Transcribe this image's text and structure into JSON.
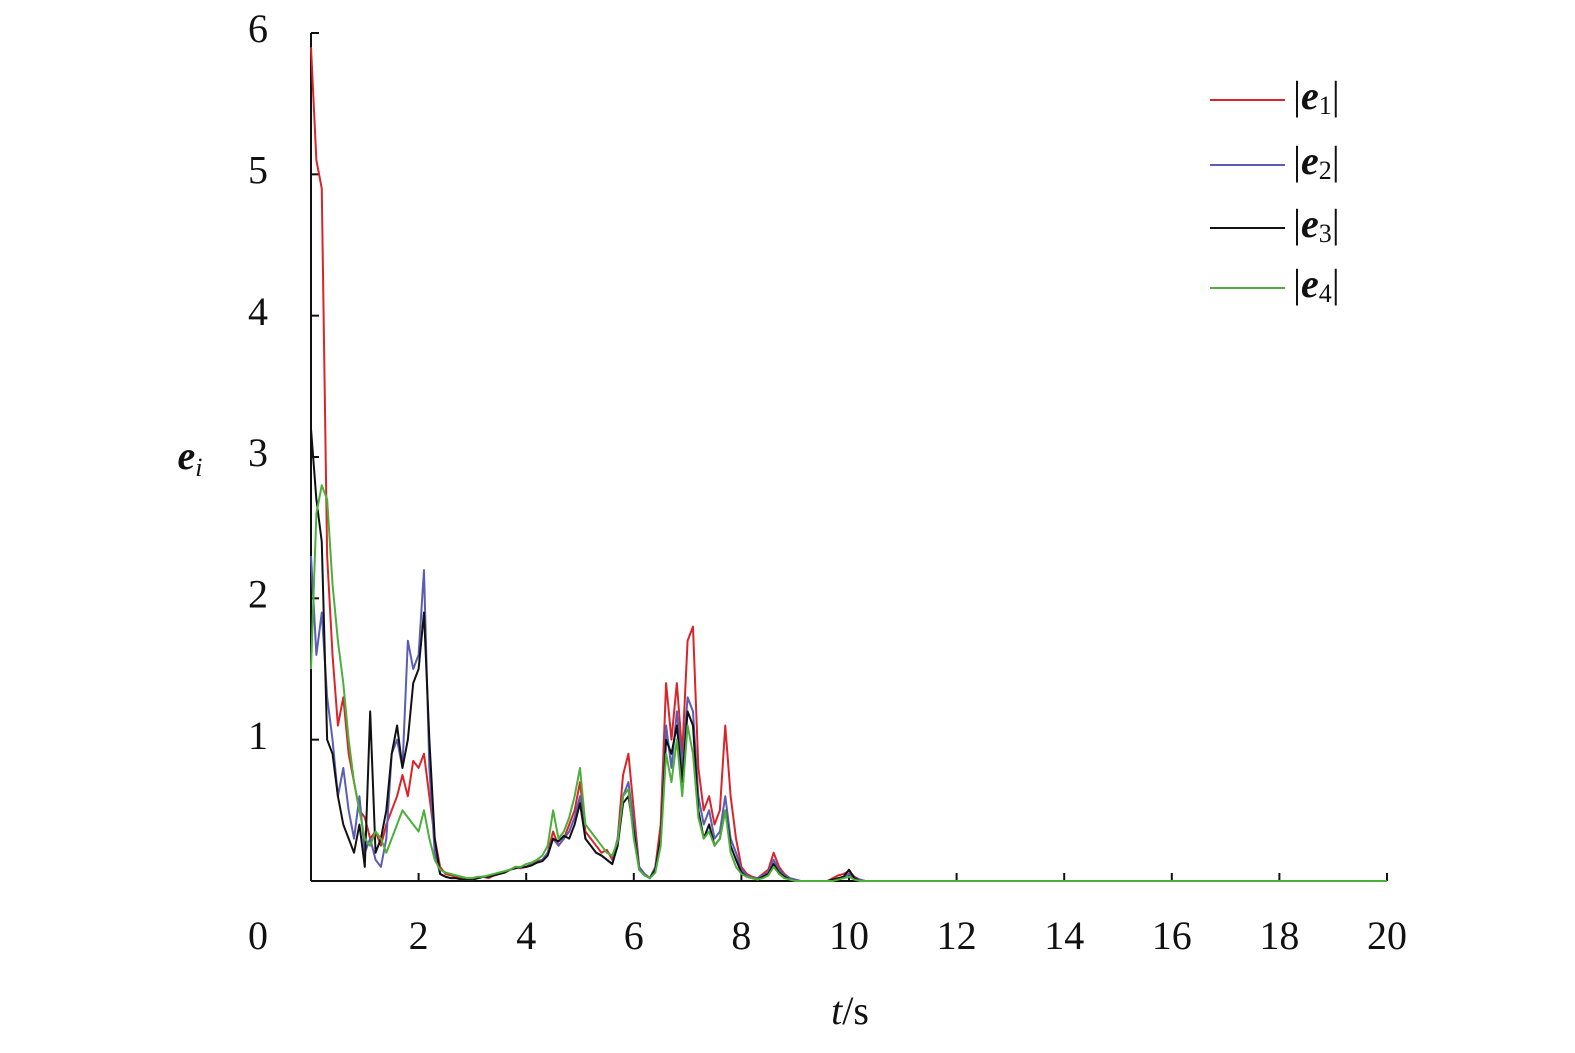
{
  "chart_data": {
    "type": "line",
    "xlabel": [
      "t",
      "/s"
    ],
    "ylabel": [
      "e",
      "i"
    ],
    "xlim": [
      0,
      20
    ],
    "ylim": [
      0,
      6
    ],
    "xticks": [
      0,
      2,
      4,
      6,
      8,
      10,
      12,
      14,
      16,
      18,
      20
    ],
    "yticks": [
      1,
      2,
      3,
      4,
      5,
      6
    ],
    "legend": "upper right",
    "x": [
      0,
      0.1,
      0.2,
      0.3,
      0.4,
      0.5,
      0.6,
      0.7,
      0.8,
      0.9,
      1,
      1.1,
      1.2,
      1.3,
      1.4,
      1.5,
      1.6,
      1.7,
      1.8,
      1.9,
      2,
      2.1,
      2.2,
      2.3,
      2.4,
      2.5,
      2.6,
      2.7,
      2.8,
      2.9,
      3,
      3.1,
      3.2,
      3.3,
      3.4,
      3.5,
      3.6,
      3.7,
      3.8,
      3.9,
      4,
      4.1,
      4.2,
      4.3,
      4.4,
      4.5,
      4.6,
      4.7,
      4.8,
      4.9,
      5,
      5.1,
      5.2,
      5.3,
      5.4,
      5.5,
      5.6,
      5.7,
      5.8,
      5.9,
      6,
      6.1,
      6.2,
      6.3,
      6.4,
      6.5,
      6.6,
      6.7,
      6.8,
      6.9,
      7,
      7.1,
      7.2,
      7.3,
      7.4,
      7.5,
      7.6,
      7.7,
      7.8,
      7.9,
      8,
      8.1,
      8.2,
      8.3,
      8.4,
      8.5,
      8.6,
      8.7,
      8.8,
      8.9,
      9,
      9.1,
      9.2,
      9.3,
      9.4,
      9.5,
      9.6,
      9.7,
      9.8,
      9.9,
      10,
      10.1,
      10.2,
      10.3,
      10.4,
      10.5,
      20
    ],
    "series": [
      {
        "name": "|e1|",
        "color": "#d9252a",
        "values": [
          5.9,
          5.1,
          4.9,
          2.3,
          1.6,
          1.1,
          1.3,
          0.9,
          0.7,
          0.5,
          0.45,
          0.3,
          0.35,
          0.25,
          0.4,
          0.5,
          0.6,
          0.75,
          0.6,
          0.85,
          0.8,
          0.9,
          0.6,
          0.3,
          0.1,
          0.05,
          0.04,
          0.03,
          0.02,
          0.01,
          0.01,
          0.02,
          0.03,
          0.02,
          0.04,
          0.05,
          0.06,
          0.08,
          0.1,
          0.09,
          0.1,
          0.12,
          0.14,
          0.15,
          0.2,
          0.35,
          0.25,
          0.3,
          0.4,
          0.5,
          0.7,
          0.35,
          0.3,
          0.25,
          0.2,
          0.22,
          0.15,
          0.3,
          0.75,
          0.9,
          0.5,
          0.1,
          0.05,
          0.02,
          0.1,
          0.4,
          1.4,
          1,
          1.4,
          0.9,
          1.7,
          1.8,
          0.8,
          0.5,
          0.6,
          0.4,
          0.5,
          1.1,
          0.6,
          0.3,
          0.1,
          0.05,
          0.03,
          0.02,
          0.05,
          0.08,
          0.2,
          0.1,
          0.05,
          0.02,
          0.01,
          0,
          0,
          0,
          0,
          0,
          0,
          0.02,
          0.04,
          0.05,
          0.07,
          0.03,
          0.01,
          0,
          0,
          0,
          0
        ]
      },
      {
        "name": "|e2|",
        "color": "#5a5db3",
        "values": [
          2.3,
          1.6,
          1.9,
          1.3,
          1,
          0.6,
          0.8,
          0.5,
          0.3,
          0.6,
          0.2,
          0.3,
          0.15,
          0.1,
          0.3,
          0.9,
          1,
          0.8,
          1.7,
          1.5,
          1.6,
          2.2,
          0.8,
          0.2,
          0.05,
          0.03,
          0.02,
          0.02,
          0.01,
          0.01,
          0.01,
          0.02,
          0.03,
          0.03,
          0.04,
          0.05,
          0.06,
          0.08,
          0.09,
          0.1,
          0.1,
          0.12,
          0.13,
          0.15,
          0.2,
          0.3,
          0.25,
          0.3,
          0.35,
          0.45,
          0.6,
          0.3,
          0.25,
          0.2,
          0.18,
          0.15,
          0.12,
          0.3,
          0.6,
          0.7,
          0.4,
          0.1,
          0.05,
          0.02,
          0.1,
          0.3,
          1.1,
          0.8,
          1.2,
          0.8,
          1.3,
          1.2,
          0.6,
          0.4,
          0.5,
          0.3,
          0.35,
          0.6,
          0.3,
          0.2,
          0.08,
          0.04,
          0.02,
          0.02,
          0.04,
          0.06,
          0.15,
          0.08,
          0.04,
          0.02,
          0.01,
          0,
          0,
          0,
          0,
          0,
          0,
          0.01,
          0.02,
          0.03,
          0.05,
          0.02,
          0.01,
          0,
          0,
          0,
          0
        ]
      },
      {
        "name": "|e3|",
        "color": "#111111",
        "values": [
          3.2,
          2.7,
          2.4,
          1,
          0.9,
          0.6,
          0.4,
          0.3,
          0.2,
          0.4,
          0.1,
          1.2,
          0.2,
          0.3,
          0.5,
          0.9,
          1.1,
          0.8,
          1,
          1.4,
          1.5,
          1.9,
          1,
          0.3,
          0.05,
          0.03,
          0.02,
          0.02,
          0.01,
          0.01,
          0.01,
          0.02,
          0.03,
          0.03,
          0.04,
          0.05,
          0.06,
          0.08,
          0.09,
          0.1,
          0.1,
          0.11,
          0.13,
          0.14,
          0.18,
          0.3,
          0.28,
          0.32,
          0.3,
          0.4,
          0.55,
          0.3,
          0.25,
          0.2,
          0.18,
          0.15,
          0.12,
          0.25,
          0.55,
          0.6,
          0.35,
          0.08,
          0.04,
          0.02,
          0.08,
          0.3,
          1,
          0.9,
          1.1,
          0.7,
          1.2,
          1.1,
          0.5,
          0.3,
          0.4,
          0.25,
          0.3,
          0.5,
          0.25,
          0.15,
          0.06,
          0.03,
          0.02,
          0.01,
          0.03,
          0.05,
          0.12,
          0.06,
          0.03,
          0.01,
          0,
          0,
          0,
          0,
          0,
          0,
          0,
          0.01,
          0.02,
          0.03,
          0.08,
          0.02,
          0,
          0,
          0,
          0,
          0
        ]
      },
      {
        "name": "|e4|",
        "color": "#4caf3a",
        "values": [
          1.5,
          2.6,
          2.8,
          2.7,
          2.1,
          1.7,
          1.4,
          1,
          0.7,
          0.5,
          0.3,
          0.25,
          0.35,
          0.3,
          0.2,
          0.3,
          0.4,
          0.5,
          0.45,
          0.4,
          0.35,
          0.5,
          0.3,
          0.15,
          0.08,
          0.06,
          0.05,
          0.04,
          0.03,
          0.02,
          0.02,
          0.03,
          0.03,
          0.04,
          0.05,
          0.06,
          0.07,
          0.08,
          0.1,
          0.1,
          0.12,
          0.13,
          0.15,
          0.18,
          0.25,
          0.5,
          0.3,
          0.35,
          0.45,
          0.6,
          0.8,
          0.4,
          0.35,
          0.3,
          0.25,
          0.2,
          0.18,
          0.28,
          0.6,
          0.65,
          0.3,
          0.08,
          0.04,
          0.02,
          0.06,
          0.25,
          0.9,
          0.7,
          1,
          0.6,
          1.1,
          0.9,
          0.45,
          0.3,
          0.35,
          0.25,
          0.3,
          0.5,
          0.2,
          0.1,
          0.05,
          0.03,
          0.02,
          0.01,
          0.02,
          0.04,
          0.1,
          0.05,
          0.02,
          0.01,
          0,
          0,
          0,
          0,
          0,
          0,
          0,
          0,
          0.01,
          0.02,
          0.03,
          0.01,
          0,
          0,
          0,
          0,
          0
        ]
      }
    ]
  }
}
